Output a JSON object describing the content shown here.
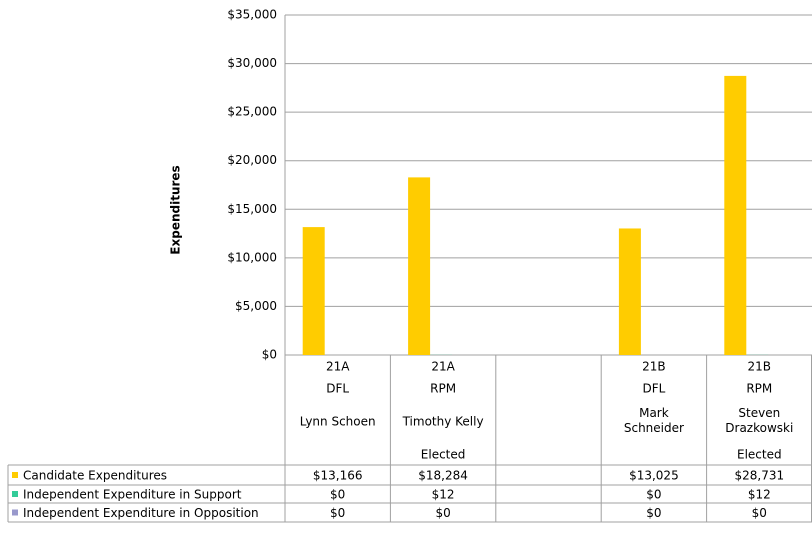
{
  "chart_data": {
    "type": "bar",
    "y_label": "Expenditures",
    "categories": [
      "21A",
      "21A",
      null,
      "21B",
      "21B"
    ],
    "parties": [
      "DFL",
      "RPM",
      null,
      "DFL",
      "RPM"
    ],
    "candidates": [
      "Lynn Schoen",
      "Timothy Kelly",
      null,
      "Mark Schneider",
      "Steven Drazkowski"
    ],
    "status": [
      null,
      "Elected",
      null,
      null,
      "Elected"
    ],
    "series": [
      {
        "name": "Candidate Expenditures",
        "color": "#ffcc00",
        "values": [
          13166,
          18284,
          null,
          13025,
          28731
        ],
        "value_labels": [
          "$13,166",
          "$18,284",
          null,
          "$13,025",
          "$28,731"
        ]
      },
      {
        "name": "Independent Expenditure in Support",
        "color": "#33cc99",
        "values": [
          0,
          12,
          null,
          0,
          12
        ],
        "value_labels": [
          "$0",
          "$12",
          null,
          "$0",
          "$12"
        ]
      },
      {
        "name": "Independent Expenditure in Opposition",
        "color": "#9999cc",
        "values": [
          0,
          0,
          null,
          0,
          0
        ],
        "value_labels": [
          "$0",
          "$0",
          null,
          "$0",
          "$0"
        ]
      }
    ],
    "ylim": [
      0,
      35000
    ],
    "yticks": [
      {
        "value": 0,
        "label": "$0"
      },
      {
        "value": 5000,
        "label": "$5,000"
      },
      {
        "value": 10000,
        "label": "$10,000"
      },
      {
        "value": 15000,
        "label": "$15,000"
      },
      {
        "value": 20000,
        "label": "$20,000"
      },
      {
        "value": 25000,
        "label": "$25,000"
      },
      {
        "value": 30000,
        "label": "$30,000"
      },
      {
        "value": 35000,
        "label": "$35,000"
      }
    ],
    "grid": true
  }
}
